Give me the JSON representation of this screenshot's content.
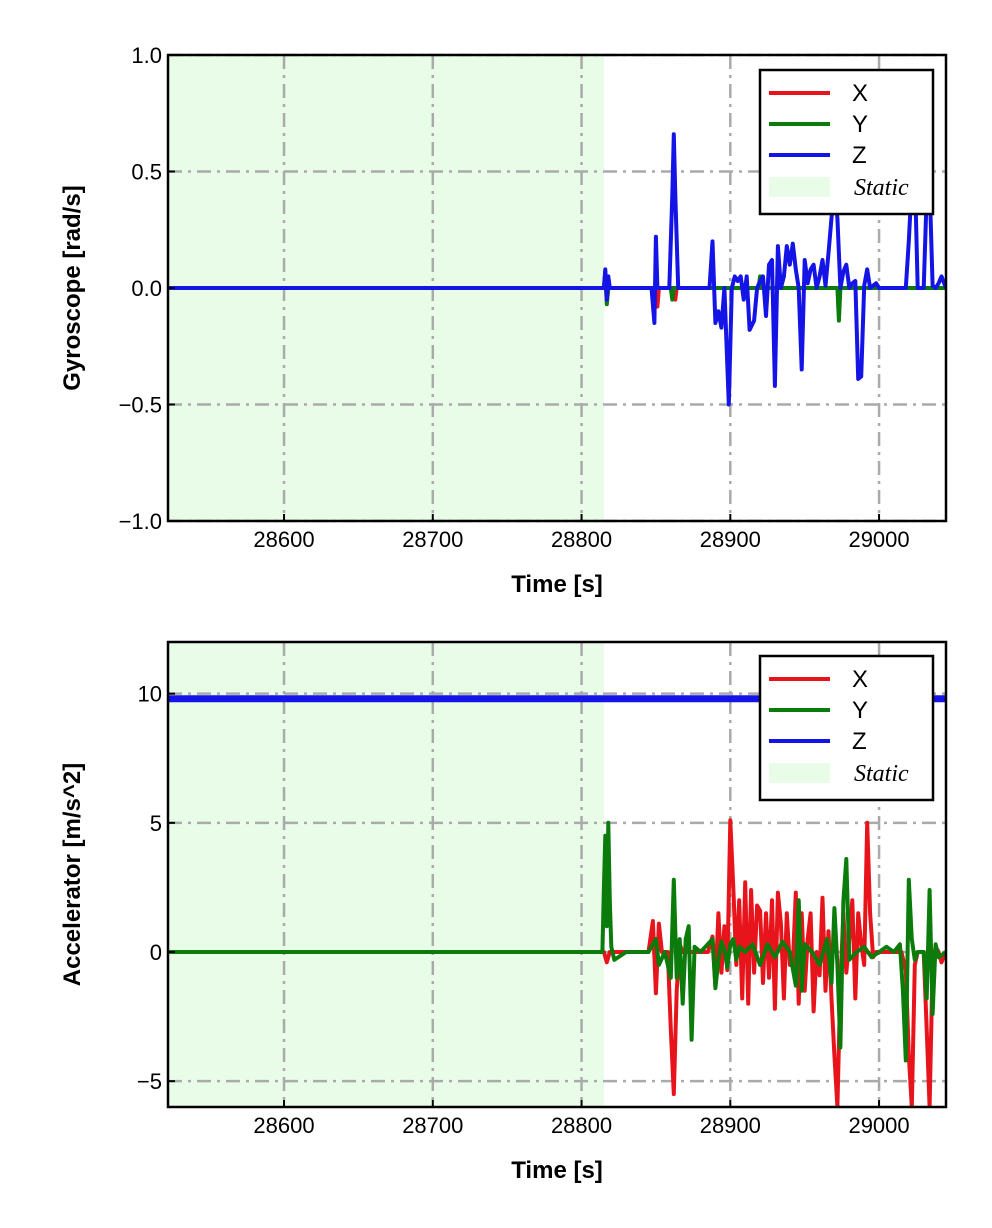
{
  "chart_data": [
    {
      "type": "line",
      "xlabel": "Time [s]",
      "ylabel": "Gyroscope [rad/s]",
      "xlim": [
        28522,
        29045
      ],
      "ylim": [
        -1.0,
        1.0
      ],
      "xticks": [
        28600,
        28700,
        28800,
        28900,
        29000
      ],
      "xtick_labels": [
        "28600",
        "28700",
        "28800",
        "28900",
        "29000"
      ],
      "yticks": [
        -1.0,
        -0.5,
        0.0,
        0.5,
        1.0
      ],
      "ytick_labels": [
        "−1.0",
        "−0.5",
        "0.0",
        "0.5",
        "1.0"
      ],
      "grid": true,
      "legend_position": "top-right",
      "static_region": {
        "label": "Static",
        "x_start": 28522,
        "x_end": 28815,
        "color": "#e8fce8"
      },
      "series": [
        {
          "name": "X",
          "color": "#e8141b",
          "x": [
            28522,
            28815,
            28816,
            28817,
            28818,
            28850,
            28851,
            28852,
            28862,
            28863,
            28864,
            28900,
            28930,
            28960,
            29045
          ],
          "y": [
            0,
            0,
            0.07,
            -0.06,
            0,
            0,
            -0.08,
            0,
            0,
            -0.05,
            0,
            0,
            0,
            0,
            0
          ]
        },
        {
          "name": "Y",
          "color": "#0b7c0b",
          "x": [
            28522,
            28815,
            28816,
            28817,
            28818,
            28860,
            28861,
            28862,
            28919,
            28920,
            28921,
            28972,
            28973,
            28974,
            29045
          ],
          "y": [
            0,
            0,
            0.06,
            -0.07,
            0,
            0,
            -0.05,
            0,
            0,
            0.05,
            0,
            0,
            -0.14,
            0,
            0
          ]
        },
        {
          "name": "Z",
          "color": "#1414e6",
          "x": [
            28522,
            28815,
            28816,
            28817,
            28818,
            28819,
            28847,
            28849,
            28850,
            28851,
            28853,
            28859,
            28861,
            28862,
            28863,
            28865,
            28886,
            28888,
            28890,
            28892,
            28894,
            28896,
            28899,
            28901,
            28903,
            28905,
            28907,
            28909,
            28911,
            28913,
            28916,
            28918,
            28920,
            28922,
            28924,
            28926,
            28928,
            28930,
            28932,
            28934,
            28936,
            28938,
            28940,
            28942,
            28944,
            28946,
            28948,
            28950,
            28952,
            28954,
            28956,
            28958,
            28960,
            28962,
            28964,
            28966,
            28968,
            28970,
            28972,
            28974,
            28976,
            28978,
            28980,
            28982,
            28984,
            28986,
            28988,
            28990,
            28992,
            28994,
            28996,
            28998,
            29000,
            29010,
            29018,
            29020,
            29022,
            29024,
            29026,
            29030,
            29032,
            29034,
            29036,
            29038,
            29040,
            29042,
            29045
          ],
          "y": [
            0,
            0,
            0.08,
            -0.05,
            0.05,
            0,
            0,
            -0.15,
            0.22,
            0,
            0,
            0,
            0.4,
            0.66,
            0.4,
            0,
            0,
            0.2,
            -0.15,
            -0.1,
            -0.17,
            0,
            -0.5,
            0,
            0.05,
            0.03,
            0.05,
            -0.05,
            0.05,
            -0.18,
            -0.14,
            0,
            0.03,
            0.05,
            -0.12,
            0.1,
            0.12,
            -0.42,
            0.18,
            0,
            0.05,
            0.18,
            0.1,
            0.19,
            0.08,
            0,
            -0.35,
            0.12,
            0.02,
            0.08,
            0.1,
            0,
            0.05,
            0.12,
            0.01,
            0.15,
            0.3,
            0.42,
            0.3,
            0,
            0.07,
            0.1,
            0,
            0.02,
            0.03,
            -0.39,
            -0.38,
            0.01,
            0.08,
            0,
            0.01,
            0.02,
            0,
            0,
            0,
            0.2,
            0.45,
            0.5,
            0,
            0,
            0.4,
            0.45,
            0.01,
            0,
            0.02,
            0.05,
            0
          ]
        }
      ],
      "legend": [
        {
          "label": "X",
          "color": "#e8141b"
        },
        {
          "label": "Y",
          "color": "#0b7c0b"
        },
        {
          "label": "Z",
          "color": "#1414e6"
        },
        {
          "label": "Static",
          "color": "#e8fce8"
        }
      ]
    },
    {
      "type": "line",
      "xlabel": "Time [s]",
      "ylabel": "Accelerator [m/s^2]",
      "xlim": [
        28522,
        29045
      ],
      "ylim": [
        -6,
        12
      ],
      "xticks": [
        28600,
        28700,
        28800,
        28900,
        29000
      ],
      "xtick_labels": [
        "28600",
        "28700",
        "28800",
        "28900",
        "29000"
      ],
      "yticks": [
        -5,
        0,
        5,
        10
      ],
      "ytick_labels": [
        "−5",
        "0",
        "5",
        "10"
      ],
      "grid": true,
      "legend_position": "top-right",
      "static_region": {
        "label": "Static",
        "x_start": 28522,
        "x_end": 28815,
        "color": "#e8fce8"
      },
      "series": [
        {
          "name": "X",
          "color": "#e8141b",
          "x": [
            28522,
            28815,
            28817,
            28819,
            28845,
            28848,
            28850,
            28852,
            28854,
            28858,
            28860,
            28862,
            28864,
            28866,
            28868,
            28870,
            28885,
            28888,
            28890,
            28892,
            28894,
            28896,
            28898,
            28900,
            28902,
            28904,
            28906,
            28908,
            28910,
            28912,
            28914,
            28916,
            28918,
            28920,
            28922,
            28924,
            28926,
            28928,
            28930,
            28932,
            28934,
            28936,
            28938,
            28940,
            28942,
            28944,
            28946,
            28948,
            28950,
            28952,
            28954,
            28956,
            28958,
            28960,
            28962,
            28964,
            28966,
            28968,
            28970,
            28972,
            28974,
            28976,
            28978,
            28980,
            28982,
            28984,
            28986,
            28988,
            28990,
            28992,
            28994,
            28996,
            28998,
            29000,
            29005,
            29010,
            29015,
            29018,
            29020,
            29022,
            29024,
            29026,
            29028,
            29030,
            29032,
            29034,
            29036,
            29038,
            29040,
            29042,
            29045
          ],
          "y": [
            0,
            0,
            -0.4,
            0,
            0,
            1.2,
            -1.6,
            1.1,
            0,
            0,
            -3.0,
            -5.5,
            -1.5,
            0.3,
            0,
            0,
            0,
            0.6,
            -1.3,
            1.5,
            -0.8,
            1.0,
            -0.7,
            5.1,
            2.5,
            -0.5,
            2.0,
            -1.8,
            2.7,
            -2.0,
            2.4,
            -0.8,
            1.8,
            1.6,
            -1.2,
            1.5,
            -1.0,
            2.0,
            -2.2,
            2.3,
            1.1,
            -1.8,
            1.5,
            -0.5,
            -0.5,
            2.3,
            -2.0,
            1.5,
            -1.5,
            0.5,
            1.5,
            -2.3,
            0,
            -0.9,
            2.1,
            -1.5,
            0.8,
            -1.8,
            -4.0,
            -6.0,
            -1.2,
            1.5,
            -0.8,
            0.5,
            2.0,
            -1.8,
            1.5,
            0.3,
            -0.5,
            5.0,
            1.5,
            -0.2,
            0,
            0,
            0,
            0,
            0,
            -0.7,
            -4.0,
            -6.0,
            -0.5,
            0,
            0,
            0,
            -3.0,
            -6.0,
            -0.5,
            0.2,
            0,
            -0.4,
            0
          ]
        },
        {
          "name": "Y",
          "color": "#0b7c0b",
          "x": [
            28522,
            28814,
            28815,
            28816,
            28817,
            28818,
            28819,
            28820,
            28822,
            28830,
            28845,
            28850,
            28852,
            28856,
            28860,
            28862,
            28864,
            28866,
            28868,
            28870,
            28872,
            28874,
            28876,
            28880,
            28888,
            28890,
            28892,
            28894,
            28896,
            28898,
            28900,
            28902,
            28904,
            28906,
            28910,
            28915,
            28920,
            28925,
            28930,
            28935,
            28940,
            28944,
            28946,
            28948,
            28950,
            28955,
            28960,
            28965,
            28968,
            28970,
            28972,
            28974,
            28976,
            28978,
            28980,
            28985,
            28990,
            28995,
            29000,
            29005,
            29010,
            29014,
            29016,
            29018,
            29020,
            29022,
            29024,
            29026,
            29030,
            29032,
            29034,
            29036,
            29038,
            29040,
            29045
          ],
          "y": [
            0,
            0,
            2.5,
            4.5,
            1.0,
            5.0,
            2.0,
            0.2,
            -0.3,
            0,
            0,
            0.5,
            -0.5,
            0,
            -1.0,
            2.8,
            -1.0,
            0.5,
            -2.0,
            0.5,
            1.0,
            -3.4,
            0.2,
            0,
            0.5,
            -1.4,
            -0.3,
            0.4,
            0.1,
            -0.6,
            0.3,
            0.5,
            -0.3,
            0.2,
            0,
            0.3,
            -0.5,
            0.3,
            -0.2,
            0.4,
            0,
            -1.3,
            2.0,
            -1.5,
            0.3,
            0,
            -0.5,
            0.5,
            -1.2,
            1.7,
            -0.5,
            -3.7,
            2.0,
            3.6,
            -0.3,
            0,
            0.2,
            -0.2,
            0,
            0.2,
            0,
            0.3,
            -1.5,
            -4.2,
            2.8,
            0.5,
            -0.3,
            0,
            0,
            -1.8,
            2.4,
            -2.4,
            0.3,
            -0.2,
            0
          ]
        },
        {
          "name": "Z",
          "color": "#1414e6",
          "x": [
            28522,
            29045
          ],
          "y": [
            9.8,
            9.8
          ]
        }
      ],
      "legend": [
        {
          "label": "X",
          "color": "#e8141b"
        },
        {
          "label": "Y",
          "color": "#0b7c0b"
        },
        {
          "label": "Z",
          "color": "#1414e6"
        },
        {
          "label": "Static",
          "color": "#e8fce8"
        }
      ]
    }
  ]
}
